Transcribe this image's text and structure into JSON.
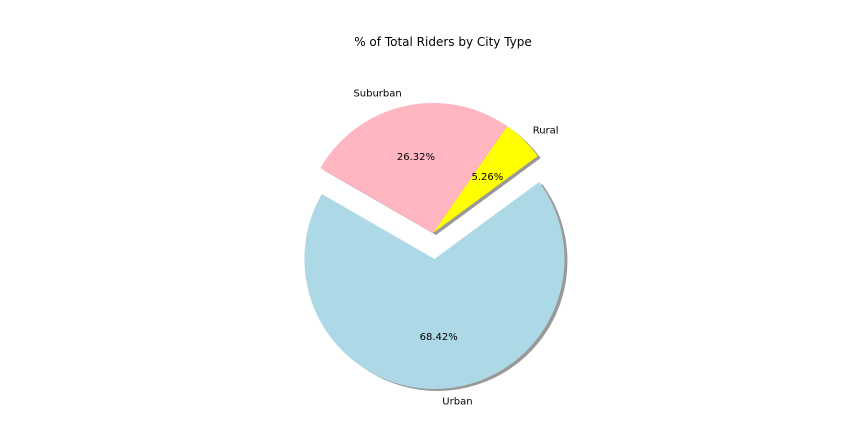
{
  "chart_data": {
    "type": "pie",
    "title": "% of Total Riders by City Type",
    "categories": [
      "Urban",
      "Rural",
      "Suburban"
    ],
    "values": [
      68.42,
      5.26,
      26.32
    ],
    "value_labels": [
      "68.42%",
      "5.26%",
      "26.32%"
    ],
    "colors": [
      "#add8e6",
      "#ffff00",
      "#ffb6c1"
    ],
    "explode": [
      0.2,
      0,
      0
    ],
    "shadow": true,
    "legend": "none",
    "grid": false
  }
}
